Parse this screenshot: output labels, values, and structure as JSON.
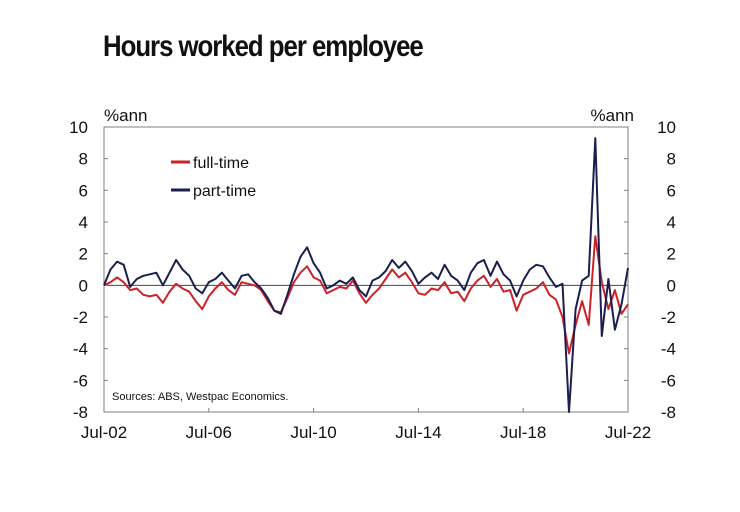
{
  "chart_data": {
    "type": "line",
    "title": "Hours worked per employee",
    "unit_left": "%ann",
    "unit_right": "%ann",
    "ylim": [
      -8,
      10
    ],
    "y_ticks": [
      "10",
      "8",
      "6",
      "4",
      "2",
      "0",
      "-2",
      "-4",
      "-6",
      "-8"
    ],
    "x_ticks": [
      "Jul-02",
      "Jul-06",
      "Jul-10",
      "Jul-14",
      "Jul-18",
      "Jul-22"
    ],
    "source": "Sources: ABS, Westpac Economics.",
    "legend_position": "upper-left",
    "series": [
      {
        "name": "full-time",
        "color": "#cc2229",
        "points": [
          [
            "2002-07",
            0.0
          ],
          [
            "2002-10",
            0.2
          ],
          [
            "2003-01",
            0.5
          ],
          [
            "2003-04",
            0.2
          ],
          [
            "2003-07",
            -0.3
          ],
          [
            "2003-10",
            -0.2
          ],
          [
            "2004-01",
            -0.6
          ],
          [
            "2004-04",
            -0.7
          ],
          [
            "2004-07",
            -0.6
          ],
          [
            "2004-10",
            -1.1
          ],
          [
            "2005-01",
            -0.4
          ],
          [
            "2005-04",
            0.1
          ],
          [
            "2005-07",
            -0.2
          ],
          [
            "2005-10",
            -0.4
          ],
          [
            "2006-01",
            -1.0
          ],
          [
            "2006-04",
            -1.5
          ],
          [
            "2006-07",
            -0.7
          ],
          [
            "2006-10",
            -0.2
          ],
          [
            "2007-01",
            0.2
          ],
          [
            "2007-04",
            -0.3
          ],
          [
            "2007-07",
            -0.6
          ],
          [
            "2007-10",
            0.2
          ],
          [
            "2008-01",
            0.1
          ],
          [
            "2008-04",
            0.0
          ],
          [
            "2008-07",
            -0.3
          ],
          [
            "2008-10",
            -1.0
          ],
          [
            "2009-01",
            -1.6
          ],
          [
            "2009-04",
            -1.7
          ],
          [
            "2009-07",
            -0.8
          ],
          [
            "2009-10",
            0.2
          ],
          [
            "2010-01",
            0.8
          ],
          [
            "2010-04",
            1.2
          ],
          [
            "2010-07",
            0.5
          ],
          [
            "2010-10",
            0.3
          ],
          [
            "2011-01",
            -0.5
          ],
          [
            "2011-04",
            -0.3
          ],
          [
            "2011-07",
            -0.1
          ],
          [
            "2011-10",
            -0.2
          ],
          [
            "2012-01",
            0.3
          ],
          [
            "2012-04",
            -0.5
          ],
          [
            "2012-07",
            -1.1
          ],
          [
            "2012-10",
            -0.6
          ],
          [
            "2013-01",
            -0.2
          ],
          [
            "2013-04",
            0.4
          ],
          [
            "2013-07",
            1.0
          ],
          [
            "2013-10",
            0.5
          ],
          [
            "2014-01",
            0.8
          ],
          [
            "2014-04",
            0.2
          ],
          [
            "2014-07",
            -0.5
          ],
          [
            "2014-10",
            -0.6
          ],
          [
            "2015-01",
            -0.2
          ],
          [
            "2015-04",
            -0.3
          ],
          [
            "2015-07",
            0.2
          ],
          [
            "2015-10",
            -0.5
          ],
          [
            "2016-01",
            -0.4
          ],
          [
            "2016-04",
            -1.0
          ],
          [
            "2016-07",
            -0.2
          ],
          [
            "2016-10",
            0.3
          ],
          [
            "2017-01",
            0.6
          ],
          [
            "2017-04",
            -0.1
          ],
          [
            "2017-07",
            0.4
          ],
          [
            "2017-10",
            -0.4
          ],
          [
            "2018-01",
            -0.3
          ],
          [
            "2018-04",
            -1.6
          ],
          [
            "2018-07",
            -0.6
          ],
          [
            "2018-10",
            -0.4
          ],
          [
            "2019-01",
            -0.2
          ],
          [
            "2019-04",
            0.2
          ],
          [
            "2019-07",
            -0.6
          ],
          [
            "2019-10",
            -0.9
          ],
          [
            "2020-01",
            -2.0
          ],
          [
            "2020-04",
            -4.3
          ],
          [
            "2020-07",
            -2.5
          ],
          [
            "2020-10",
            -1.0
          ],
          [
            "2021-01",
            -2.5
          ],
          [
            "2021-04",
            3.1
          ],
          [
            "2021-07",
            0.2
          ],
          [
            "2021-10",
            -1.5
          ],
          [
            "2022-01",
            -0.3
          ],
          [
            "2022-04",
            -1.8
          ],
          [
            "2022-07",
            -1.2
          ]
        ]
      },
      {
        "name": "part-time",
        "color": "#1b1f4e",
        "points": [
          [
            "2002-07",
            0.0
          ],
          [
            "2002-10",
            1.0
          ],
          [
            "2003-01",
            1.5
          ],
          [
            "2003-04",
            1.3
          ],
          [
            "2003-07",
            -0.1
          ],
          [
            "2003-10",
            0.4
          ],
          [
            "2004-01",
            0.6
          ],
          [
            "2004-04",
            0.7
          ],
          [
            "2004-07",
            0.8
          ],
          [
            "2004-10",
            0.0
          ],
          [
            "2005-01",
            0.8
          ],
          [
            "2005-04",
            1.6
          ],
          [
            "2005-07",
            1.0
          ],
          [
            "2005-10",
            0.6
          ],
          [
            "2006-01",
            -0.2
          ],
          [
            "2006-04",
            -0.5
          ],
          [
            "2006-07",
            0.2
          ],
          [
            "2006-10",
            0.4
          ],
          [
            "2007-01",
            0.8
          ],
          [
            "2007-04",
            0.3
          ],
          [
            "2007-07",
            -0.2
          ],
          [
            "2007-10",
            0.6
          ],
          [
            "2008-01",
            0.7
          ],
          [
            "2008-04",
            0.2
          ],
          [
            "2008-07",
            -0.2
          ],
          [
            "2008-10",
            -0.8
          ],
          [
            "2009-01",
            -1.6
          ],
          [
            "2009-04",
            -1.8
          ],
          [
            "2009-07",
            -0.6
          ],
          [
            "2009-10",
            0.7
          ],
          [
            "2010-01",
            1.8
          ],
          [
            "2010-04",
            2.4
          ],
          [
            "2010-07",
            1.4
          ],
          [
            "2010-10",
            0.8
          ],
          [
            "2011-01",
            -0.2
          ],
          [
            "2011-04",
            0.0
          ],
          [
            "2011-07",
            0.3
          ],
          [
            "2011-10",
            0.1
          ],
          [
            "2012-01",
            0.5
          ],
          [
            "2012-04",
            -0.3
          ],
          [
            "2012-07",
            -0.7
          ],
          [
            "2012-10",
            0.3
          ],
          [
            "2013-01",
            0.5
          ],
          [
            "2013-04",
            0.9
          ],
          [
            "2013-07",
            1.6
          ],
          [
            "2013-10",
            1.1
          ],
          [
            "2014-01",
            1.5
          ],
          [
            "2014-04",
            0.9
          ],
          [
            "2014-07",
            0.1
          ],
          [
            "2014-10",
            0.5
          ],
          [
            "2015-01",
            0.8
          ],
          [
            "2015-04",
            0.4
          ],
          [
            "2015-07",
            1.3
          ],
          [
            "2015-10",
            0.6
          ],
          [
            "2016-01",
            0.3
          ],
          [
            "2016-04",
            -0.3
          ],
          [
            "2016-07",
            0.8
          ],
          [
            "2016-10",
            1.4
          ],
          [
            "2017-01",
            1.6
          ],
          [
            "2017-04",
            0.6
          ],
          [
            "2017-07",
            1.5
          ],
          [
            "2017-10",
            0.7
          ],
          [
            "2018-01",
            0.3
          ],
          [
            "2018-04",
            -0.7
          ],
          [
            "2018-07",
            0.3
          ],
          [
            "2018-10",
            1.0
          ],
          [
            "2019-01",
            1.3
          ],
          [
            "2019-04",
            1.2
          ],
          [
            "2019-07",
            0.5
          ],
          [
            "2019-10",
            -0.1
          ],
          [
            "2020-01",
            0.1
          ],
          [
            "2020-04",
            -8.0
          ],
          [
            "2020-07",
            -1.5
          ],
          [
            "2020-10",
            0.3
          ],
          [
            "2021-01",
            0.6
          ],
          [
            "2021-04",
            9.3
          ],
          [
            "2021-07",
            -3.2
          ],
          [
            "2021-10",
            0.4
          ],
          [
            "2022-01",
            -2.8
          ],
          [
            "2022-04",
            -1.2
          ],
          [
            "2022-07",
            1.1
          ]
        ]
      }
    ]
  }
}
